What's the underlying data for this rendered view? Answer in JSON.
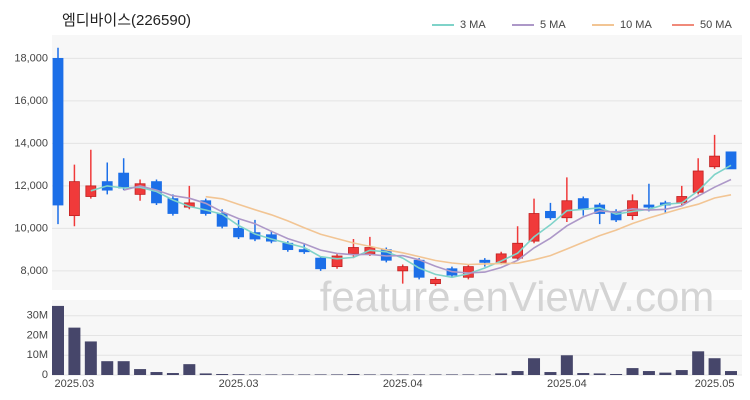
{
  "chart_data": [
    {
      "type": "candlestick",
      "title": "엠디바이스(226590)",
      "watermark": "feature.enViewV.com",
      "categories": [
        null,
        "2025.03",
        null,
        null,
        null,
        null,
        null,
        null,
        null,
        null,
        null,
        "2025.03",
        null,
        null,
        null,
        null,
        null,
        null,
        null,
        null,
        null,
        "2025.04",
        null,
        null,
        null,
        null,
        null,
        null,
        null,
        null,
        null,
        "2025.04",
        null,
        null,
        null,
        null,
        null,
        null,
        null,
        null,
        "2025.05",
        null
      ],
      "open": [
        18000,
        10600,
        11500,
        12200,
        12600,
        11600,
        12200,
        11400,
        11000,
        11300,
        10700,
        10000,
        9800,
        9700,
        9300,
        9000,
        8600,
        8200,
        8800,
        8800,
        9000,
        8000,
        8500,
        7400,
        8100,
        7700,
        8500,
        8400,
        8600,
        9400,
        10800,
        10500,
        11400,
        11100,
        10800,
        10600,
        11100,
        11200,
        11200,
        11700,
        12900,
        13600
      ],
      "high": [
        18500,
        13000,
        13700,
        13100,
        13300,
        12300,
        12300,
        11600,
        12000,
        11400,
        10900,
        10400,
        10400,
        9900,
        9400,
        9300,
        8700,
        8800,
        9500,
        9600,
        9100,
        8300,
        8600,
        7700,
        8200,
        8300,
        8600,
        8900,
        10100,
        11400,
        11200,
        12400,
        11500,
        11200,
        10900,
        11600,
        12100,
        11300,
        12000,
        13300,
        14400,
        13600
      ],
      "low": [
        10200,
        10100,
        11400,
        11600,
        11800,
        11300,
        11100,
        10600,
        10900,
        10600,
        10000,
        9500,
        9400,
        9300,
        8900,
        8800,
        8000,
        8100,
        8600,
        8700,
        8400,
        7400,
        7600,
        7300,
        7700,
        7600,
        8200,
        8300,
        8500,
        9300,
        10400,
        10300,
        10600,
        10200,
        10300,
        10400,
        10800,
        10700,
        11100,
        11600,
        12800,
        12800
      ],
      "close": [
        11100,
        12200,
        12000,
        11800,
        11900,
        12100,
        11200,
        10700,
        11200,
        10700,
        10100,
        9600,
        9500,
        9400,
        9000,
        8900,
        8100,
        8700,
        9100,
        9100,
        8500,
        8200,
        7700,
        7600,
        7800,
        8200,
        8400,
        8800,
        9300,
        10700,
        10500,
        11300,
        10900,
        10700,
        10400,
        11300,
        11000,
        11100,
        11500,
        12700,
        13400,
        12800
      ],
      "up_color": "#f03a3a",
      "down_color": "#1c6fe8",
      "series": [
        {
          "name": "3 MA",
          "color": "#7fd3c9",
          "values": [
            null,
            null,
            11767,
            12000,
            11900,
            11933,
            11733,
            11333,
            11033,
            10867,
            10667,
            10133,
            9733,
            9500,
            9300,
            9100,
            8667,
            8567,
            8633,
            8967,
            8900,
            8600,
            8133,
            7833,
            7700,
            7867,
            8133,
            8467,
            8833,
            9600,
            10167,
            10833,
            10900,
            10967,
            10667,
            10800,
            10900,
            11133,
            11200,
            11767,
            12533,
            12967
          ]
        },
        {
          "name": "5 MA",
          "color": "#ad98c8",
          "values": [
            null,
            null,
            null,
            null,
            11800,
            12000,
            11800,
            11540,
            11420,
            11180,
            10780,
            10460,
            10220,
            9860,
            9520,
            9280,
            8980,
            8820,
            8760,
            8780,
            8700,
            8720,
            8520,
            8220,
            7960,
            7900,
            7940,
            8160,
            8500,
            9080,
            9540,
            10120,
            10540,
            10820,
            10760,
            10920,
            10860,
            10900,
            11060,
            11520,
            11940,
            12300
          ]
        },
        {
          "name": "10 MA",
          "color": "#f2c594",
          "values": [
            null,
            null,
            null,
            null,
            null,
            null,
            null,
            null,
            null,
            11490,
            11390,
            11130,
            10880,
            10640,
            10350,
            10030,
            9720,
            9520,
            9310,
            9150,
            8990,
            8850,
            8670,
            8490,
            8370,
            8300,
            8330,
            8340,
            8360,
            8520,
            8720,
            9030,
            9350,
            9660,
            9920,
            10230,
            10490,
            10720,
            10940,
            11140,
            11430,
            11580
          ]
        },
        {
          "name": "50 MA",
          "color": "#f08a7a",
          "values": [
            null,
            null,
            null,
            null,
            null,
            null,
            null,
            null,
            null,
            null,
            null,
            null,
            null,
            null,
            null,
            null,
            null,
            null,
            null,
            null,
            null,
            null,
            null,
            null,
            null,
            null,
            null,
            null,
            null,
            null,
            null,
            null,
            null,
            null,
            null,
            null,
            null,
            null,
            null,
            null,
            null,
            null
          ]
        }
      ],
      "ylim": [
        7100,
        19100
      ],
      "yticks": [
        {
          "value": 8000,
          "label": "8,000"
        },
        {
          "value": 10000,
          "label": "10,000"
        },
        {
          "value": 12000,
          "label": "12,000"
        },
        {
          "value": 14000,
          "label": "14,000"
        },
        {
          "value": 16000,
          "label": "16,000"
        },
        {
          "value": 18000,
          "label": "18,000"
        }
      ],
      "grid": true,
      "legend": "top-right"
    },
    {
      "type": "bar",
      "color": "#46466a",
      "values": [
        35000000,
        24000000,
        17000000,
        7000000,
        7000000,
        3000000,
        1500000,
        1000000,
        5500000,
        800000,
        500000,
        400000,
        300000,
        300000,
        300000,
        300000,
        300000,
        300000,
        500000,
        300000,
        300000,
        300000,
        300000,
        300000,
        300000,
        300000,
        300000,
        800000,
        2000000,
        8500000,
        1500000,
        10000000,
        1000000,
        800000,
        500000,
        3500000,
        2000000,
        1200000,
        2500000,
        12000000,
        8500000,
        2000000
      ],
      "ylim": [
        0,
        38000000
      ],
      "yticks": [
        0,
        {
          "value": 10000000,
          "label": "10M"
        },
        {
          "value": 20000000,
          "label": "20M"
        },
        {
          "value": 30000000,
          "label": "30M"
        }
      ],
      "grid": true
    }
  ]
}
